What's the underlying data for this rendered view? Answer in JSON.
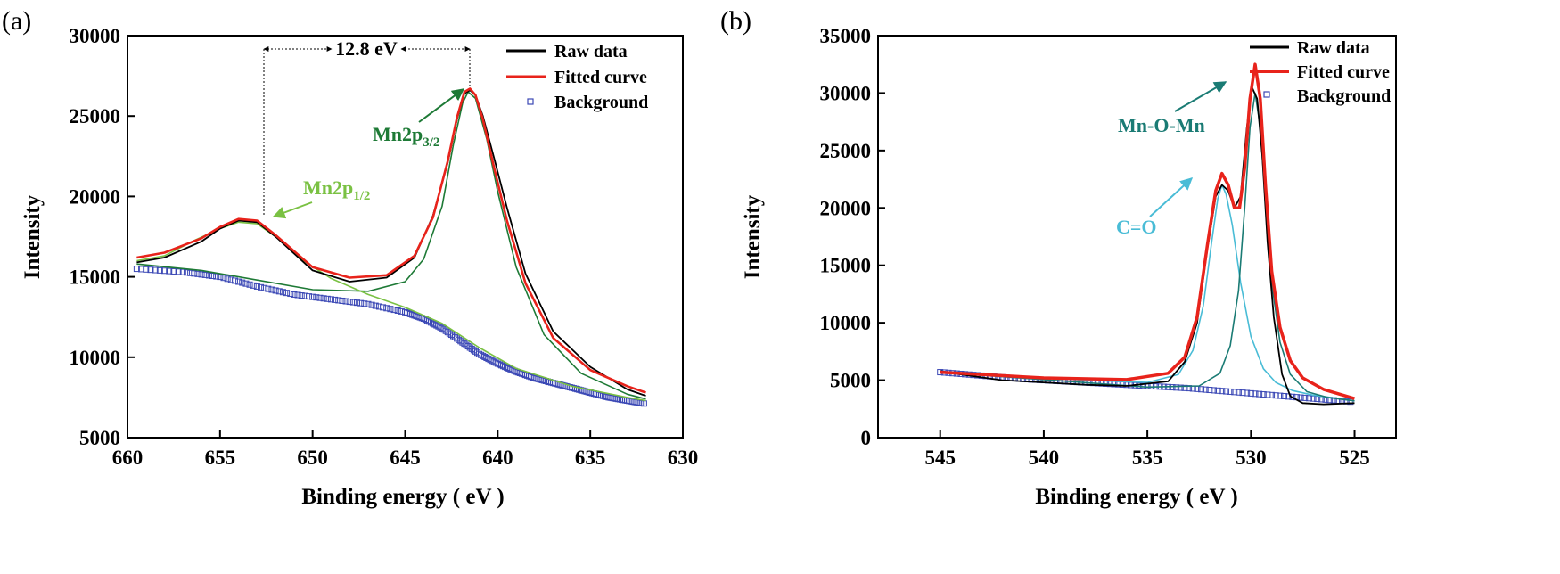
{
  "chart_data": [
    {
      "panel": "(a)",
      "type": "line",
      "xlabel": "Binding energy ( eV )",
      "ylabel": "Intensity",
      "xlim": [
        660,
        630
      ],
      "ylim": [
        5000,
        30000
      ],
      "xticks": [
        660,
        655,
        650,
        645,
        640,
        635,
        630
      ],
      "yticks": [
        5000,
        10000,
        15000,
        20000,
        25000,
        30000
      ],
      "legend": {
        "position": "top-right",
        "entries": [
          {
            "label": "Raw data",
            "color": "#000000",
            "style": "line"
          },
          {
            "label": "Fitted curve",
            "color": "#e8231b",
            "style": "line"
          },
          {
            "label": "Background",
            "color": "#3b48b5",
            "style": "square"
          }
        ]
      },
      "split_label": "12.8 eV",
      "split_between": [
        653.9,
        641.7
      ],
      "annotations": [
        {
          "text": "Mn2p",
          "sub": "3/2",
          "color": "#1e7a36",
          "target_x": 641.7,
          "target_y": 26600
        },
        {
          "text": "Mn2p",
          "sub": "1/2",
          "color": "#7ac143",
          "target_x": 653.9,
          "target_y": 18500
        }
      ],
      "series": [
        {
          "name": "Fitted curve",
          "color": "#e8231b",
          "x": [
            659.5,
            658,
            656,
            655,
            654,
            653,
            652,
            650,
            648,
            646,
            644.5,
            643.5,
            642.7,
            642.2,
            641.8,
            641.5,
            641.2,
            640.8,
            640.2,
            639.5,
            638.5,
            637,
            635,
            633,
            632
          ],
          "y": [
            16200,
            16500,
            17400,
            18100,
            18600,
            18500,
            17600,
            15600,
            14950,
            15100,
            16300,
            18700,
            22200,
            24900,
            26500,
            26700,
            26300,
            24800,
            21800,
            18500,
            14600,
            11200,
            9200,
            8200,
            7800
          ]
        },
        {
          "name": "Raw data",
          "color": "#000000",
          "x": [
            659.5,
            658,
            656,
            655,
            654,
            653,
            652,
            650,
            648,
            646,
            644.5,
            643.5,
            642.7,
            642.2,
            641.8,
            641.5,
            641.2,
            640.8,
            640.2,
            639.5,
            638.5,
            637,
            635,
            633,
            632
          ],
          "y": [
            15900,
            16200,
            17200,
            18000,
            18500,
            18400,
            17500,
            15400,
            14700,
            14950,
            16200,
            18800,
            22100,
            24800,
            26400,
            26600,
            26300,
            25000,
            22400,
            19300,
            15200,
            11600,
            9400,
            8000,
            7600
          ]
        },
        {
          "name": "Mn2p3/2 component",
          "color": "#1e7a36",
          "x": [
            659.5,
            656,
            653,
            650,
            647,
            645,
            644,
            643,
            642.4,
            641.9,
            641.6,
            641.2,
            640.6,
            640,
            639,
            637.5,
            635.5,
            633,
            632
          ],
          "y": [
            15800,
            15400,
            14800,
            14200,
            14100,
            14700,
            16100,
            19400,
            23200,
            25800,
            26500,
            26100,
            23600,
            20300,
            15600,
            11400,
            9000,
            7700,
            7400
          ]
        },
        {
          "name": "Mn2p1/2 component",
          "color": "#7ac143",
          "x": [
            659.5,
            658,
            656.5,
            655,
            654,
            653,
            652,
            650.5,
            649,
            647,
            645,
            643,
            641,
            639,
            636,
            633,
            632
          ],
          "y": [
            16000,
            16300,
            17200,
            18000,
            18400,
            18300,
            17500,
            16000,
            14900,
            13900,
            13100,
            12100,
            10600,
            9300,
            8200,
            7500,
            7300
          ]
        },
        {
          "name": "Background",
          "color": "#3b48b5",
          "marker": "square",
          "x": [
            659.5,
            657,
            655,
            653,
            651,
            649,
            647,
            645,
            644,
            643,
            642,
            641,
            640,
            639,
            638,
            637,
            636,
            635,
            634,
            633,
            632
          ],
          "y": [
            15500,
            15300,
            15000,
            14400,
            13900,
            13600,
            13300,
            12800,
            12400,
            11800,
            11000,
            10200,
            9600,
            9100,
            8700,
            8400,
            8100,
            7800,
            7500,
            7300,
            7100
          ]
        }
      ]
    },
    {
      "panel": "(b)",
      "type": "line",
      "xlabel": "Binding energy ( eV )",
      "ylabel": "Intensity",
      "xlim": [
        548,
        523
      ],
      "ylim": [
        0,
        35000
      ],
      "xticks": [
        545,
        540,
        535,
        530,
        525
      ],
      "yticks": [
        0,
        5000,
        10000,
        15000,
        20000,
        25000,
        30000,
        35000
      ],
      "legend": {
        "position": "top-right",
        "entries": [
          {
            "label": "Raw data",
            "color": "#000000",
            "style": "line"
          },
          {
            "label": "Fitted curve",
            "color": "#e8231b",
            "style": "line"
          },
          {
            "label": "Background",
            "color": "#3b48b5",
            "style": "square"
          }
        ]
      },
      "annotations": [
        {
          "text": "Mn-O-Mn",
          "color": "#1a7b74",
          "target_x": 529.8,
          "target_y": 30500
        },
        {
          "text": "C=O",
          "color": "#49bcd6",
          "target_x": 531.4,
          "target_y": 22000
        }
      ],
      "series": [
        {
          "name": "Fitted curve",
          "color": "#e8231b",
          "x": [
            545,
            540,
            536,
            534,
            533.2,
            532.6,
            532.1,
            531.7,
            531.4,
            531.1,
            530.8,
            530.55,
            530.3,
            530.05,
            529.8,
            529.55,
            529.3,
            529,
            528.6,
            528.1,
            527.5,
            526.5,
            525
          ],
          "y": [
            5700,
            5200,
            5050,
            5600,
            7000,
            10500,
            16800,
            21500,
            23000,
            22000,
            20000,
            20000,
            23500,
            29500,
            32500,
            29500,
            22000,
            14500,
            9600,
            6700,
            5200,
            4200,
            3400
          ]
        },
        {
          "name": "Raw data",
          "color": "#000000",
          "x": [
            545,
            544,
            542,
            540,
            538,
            536,
            534,
            533.2,
            532.6,
            532.1,
            531.7,
            531.4,
            531.1,
            530.8,
            530.5,
            530.2,
            529.95,
            529.7,
            529.45,
            529.2,
            528.9,
            528.5,
            528.1,
            527.5,
            526.5,
            525
          ],
          "y": [
            5800,
            5500,
            5000,
            4800,
            4600,
            4500,
            4900,
            6600,
            10000,
            16500,
            21000,
            22000,
            21500,
            20000,
            21000,
            27000,
            30500,
            29500,
            24500,
            17000,
            10500,
            5500,
            3600,
            3000,
            2900,
            3000
          ]
        },
        {
          "name": "C=O component",
          "color": "#49bcd6",
          "x": [
            545,
            538,
            535,
            533.5,
            532.8,
            532.3,
            531.9,
            531.6,
            531.4,
            531.2,
            530.9,
            530.5,
            530,
            529.4,
            528.8,
            528,
            527,
            525
          ],
          "y": [
            5700,
            5000,
            4800,
            5500,
            7600,
            11500,
            17000,
            20800,
            22000,
            21200,
            18500,
            13500,
            8800,
            6000,
            4800,
            4100,
            3700,
            3200
          ]
        },
        {
          "name": "Mn-O-Mn component",
          "color": "#1a7b74",
          "x": [
            545,
            535,
            532.5,
            531.5,
            531,
            530.6,
            530.3,
            530.05,
            529.8,
            529.55,
            529.3,
            529,
            528.6,
            528.1,
            527.3,
            526.3,
            525
          ],
          "y": [
            5700,
            4400,
            4500,
            5600,
            8000,
            12800,
            20000,
            27000,
            30000,
            27000,
            20500,
            13500,
            8300,
            5500,
            4000,
            3500,
            3200
          ]
        },
        {
          "name": "Background",
          "color": "#3b48b5",
          "marker": "square",
          "x": [
            545,
            543,
            541,
            539,
            537,
            535,
            533,
            531,
            529,
            527,
            525
          ],
          "y": [
            5700,
            5400,
            5100,
            4900,
            4700,
            4500,
            4300,
            4000,
            3700,
            3400,
            3100
          ]
        }
      ]
    }
  ]
}
